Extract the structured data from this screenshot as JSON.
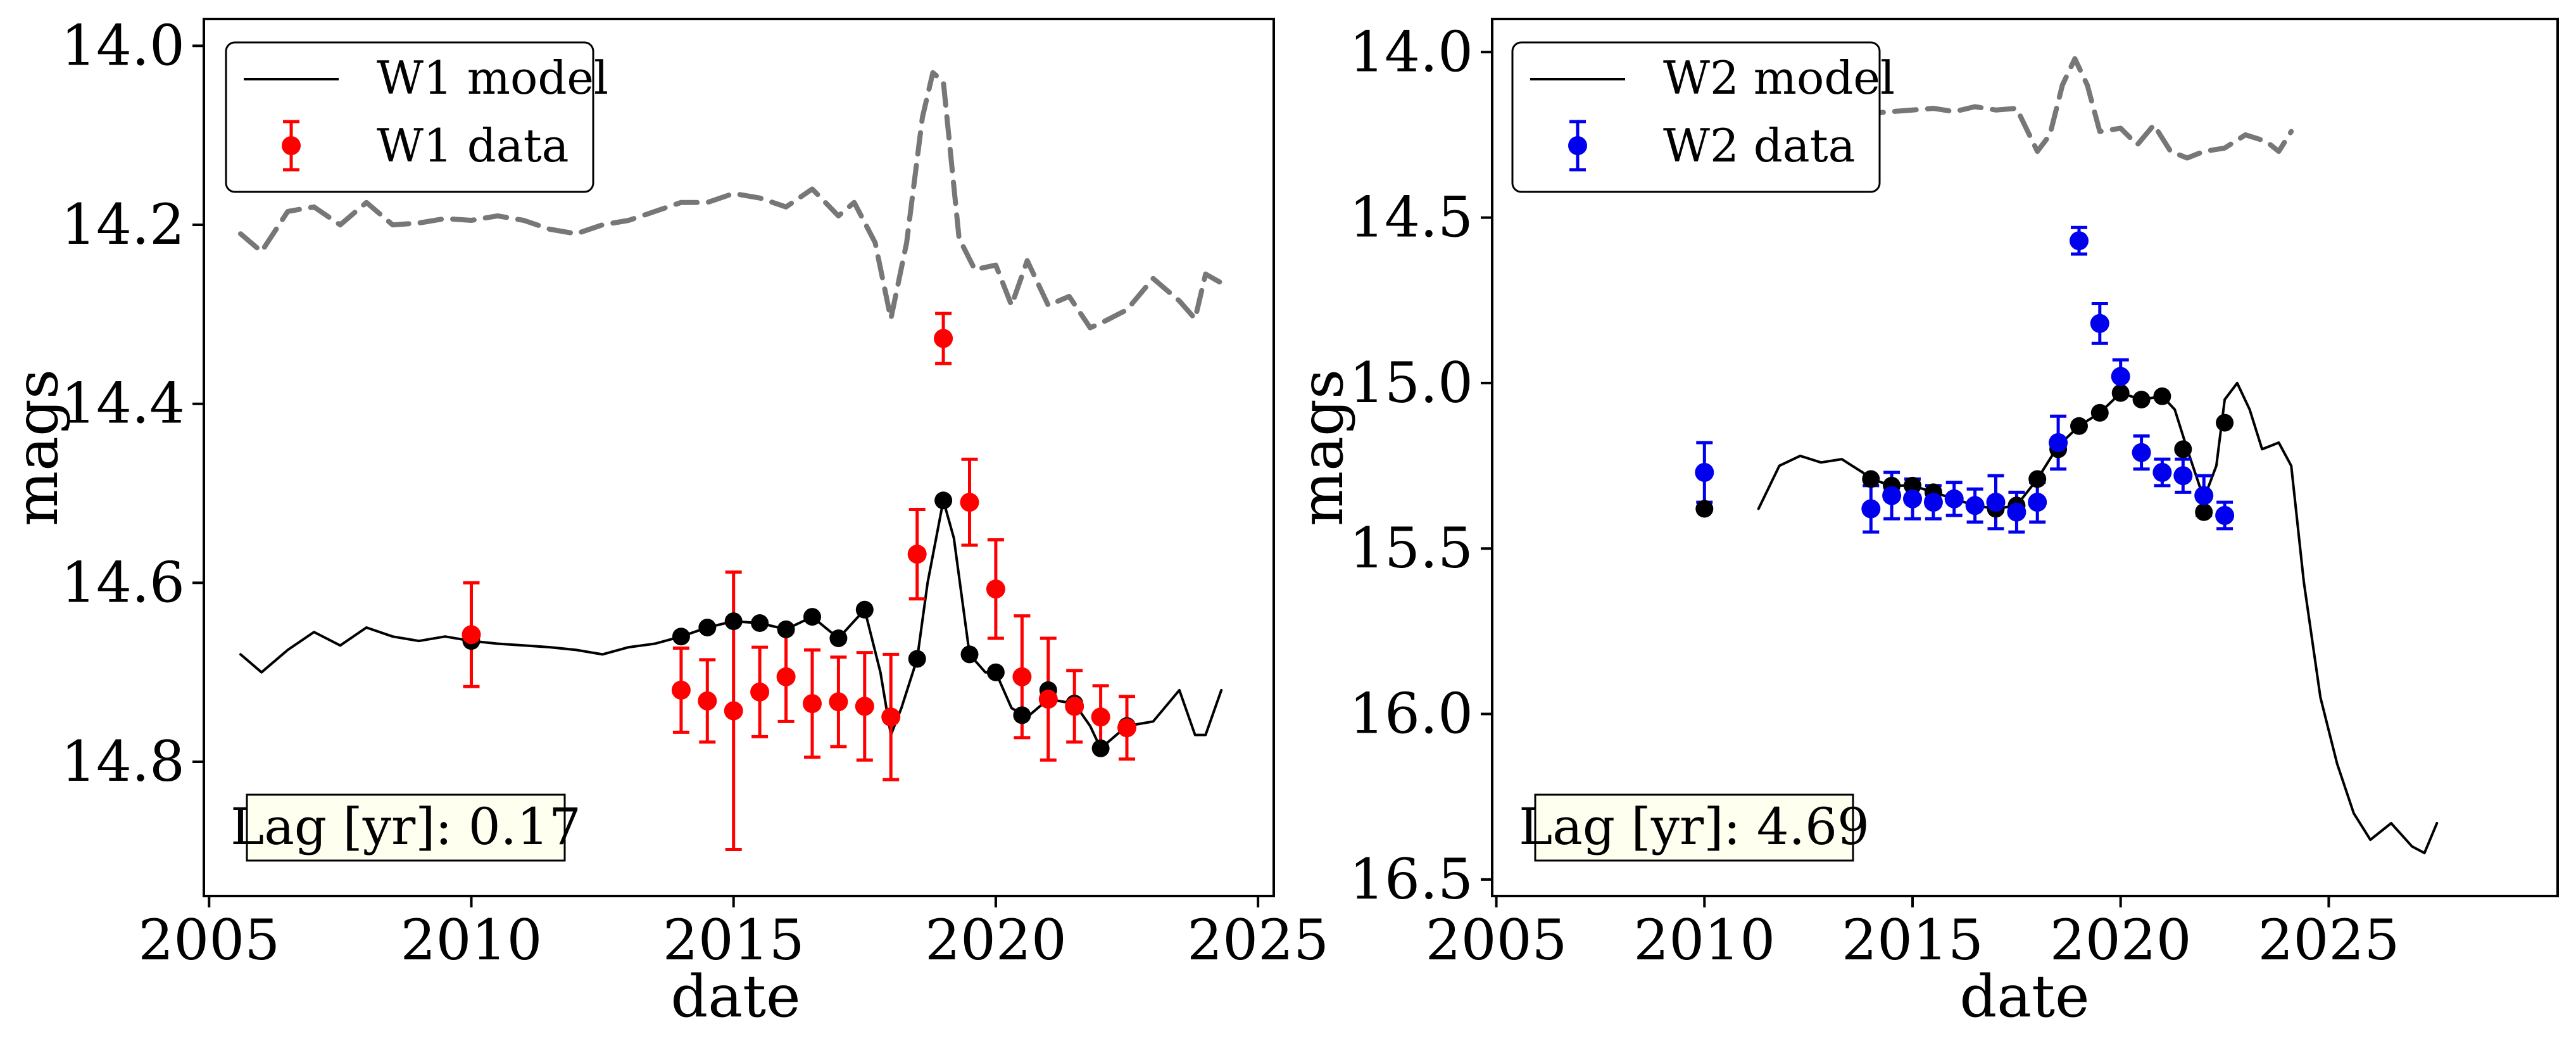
{
  "chart_data": [
    {
      "type": "line",
      "xlabel": "date",
      "ylabel": "mags",
      "xlim": [
        2004.9,
        2025.3
      ],
      "ylim": [
        14.95,
        13.97
      ],
      "y_inverted": true,
      "xticks": [
        2005,
        2010,
        2015,
        2020,
        2025
      ],
      "yticks": [
        14.0,
        14.2,
        14.4,
        14.6,
        14.8
      ],
      "xtick_labels": [
        "2005",
        "2010",
        "2015",
        "2020",
        "2025"
      ],
      "ytick_labels": [
        "14.0",
        "14.2",
        "14.4",
        "14.6",
        "14.8"
      ],
      "legend_position": "top-left",
      "legend": {
        "model_label": "W1 model",
        "data_label": "W1 data"
      },
      "lag_text": "Lag [yr]: 0.17",
      "colors": {
        "model": "#000000",
        "data": "#ff0000",
        "dashed": "#777777",
        "black_points": "#000000"
      },
      "model_curve": {
        "x": [
          2005.6,
          2006.0,
          2006.5,
          2007.0,
          2007.5,
          2008.0,
          2008.5,
          2009.0,
          2009.5,
          2010.0,
          2010.5,
          2011.0,
          2011.5,
          2012.0,
          2012.5,
          2013.0,
          2013.5,
          2014.0,
          2014.5,
          2015.0,
          2015.5,
          2016.0,
          2016.5,
          2017.0,
          2017.5,
          2017.8,
          2018.0,
          2018.2,
          2018.5,
          2018.7,
          2019.0,
          2019.2,
          2019.5,
          2019.8,
          2020.0,
          2020.3,
          2020.6,
          2021.0,
          2021.5,
          2021.8,
          2022.0,
          2022.5,
          2023.0,
          2023.5,
          2023.8,
          2024.0,
          2024.3
        ],
        "y": [
          14.68,
          14.7,
          14.675,
          14.655,
          14.67,
          14.65,
          14.66,
          14.665,
          14.66,
          14.665,
          14.668,
          14.67,
          14.672,
          14.675,
          14.68,
          14.672,
          14.668,
          14.66,
          14.65,
          14.643,
          14.645,
          14.652,
          14.638,
          14.662,
          14.63,
          14.7,
          14.77,
          14.74,
          14.685,
          14.6,
          14.508,
          14.55,
          14.68,
          14.7,
          14.7,
          14.74,
          14.75,
          14.73,
          14.735,
          14.76,
          14.785,
          14.76,
          14.755,
          14.72,
          14.77,
          14.77,
          14.72
        ]
      },
      "dashed_curve": {
        "x": [
          2005.6,
          2006.0,
          2006.5,
          2007.0,
          2007.5,
          2008.0,
          2008.5,
          2009.0,
          2009.5,
          2010.0,
          2010.5,
          2011.0,
          2011.5,
          2012.0,
          2012.5,
          2013.0,
          2013.5,
          2014.0,
          2014.5,
          2015.0,
          2015.5,
          2016.0,
          2016.5,
          2017.0,
          2017.3,
          2017.7,
          2018.0,
          2018.3,
          2018.6,
          2018.8,
          2019.0,
          2019.3,
          2019.6,
          2020.0,
          2020.3,
          2020.6,
          2021.0,
          2021.4,
          2021.8,
          2022.0,
          2022.5,
          2023.0,
          2023.5,
          2023.8,
          2024.0,
          2024.3
        ],
        "y": [
          14.21,
          14.23,
          14.185,
          14.18,
          14.2,
          14.175,
          14.2,
          14.198,
          14.193,
          14.195,
          14.19,
          14.195,
          14.205,
          14.21,
          14.2,
          14.195,
          14.185,
          14.175,
          14.175,
          14.165,
          14.17,
          14.18,
          14.16,
          14.19,
          14.175,
          14.22,
          14.305,
          14.22,
          14.08,
          14.03,
          14.04,
          14.215,
          14.25,
          14.245,
          14.29,
          14.24,
          14.29,
          14.28,
          14.315,
          14.31,
          14.295,
          14.26,
          14.285,
          14.305,
          14.255,
          14.265
        ]
      },
      "black_points": {
        "x": [
          2010.0,
          2014.0,
          2014.5,
          2015.0,
          2015.5,
          2016.0,
          2016.5,
          2017.0,
          2017.5,
          2018.5,
          2019.0,
          2019.5,
          2020.0,
          2020.5,
          2021.0,
          2021.5,
          2022.0,
          2022.5
        ],
        "y": [
          14.665,
          14.66,
          14.65,
          14.643,
          14.645,
          14.652,
          14.638,
          14.662,
          14.63,
          14.685,
          14.508,
          14.68,
          14.7,
          14.748,
          14.72,
          14.735,
          14.785,
          14.76
        ]
      },
      "data_points": {
        "x": [
          2010.0,
          2014.0,
          2014.5,
          2015.0,
          2015.5,
          2016.0,
          2016.5,
          2017.0,
          2017.5,
          2018.0,
          2018.5,
          2019.0,
          2019.5,
          2020.0,
          2020.5,
          2021.0,
          2021.5,
          2022.0,
          2022.5
        ],
        "y": [
          14.658,
          14.72,
          14.732,
          14.743,
          14.722,
          14.705,
          14.735,
          14.733,
          14.738,
          14.75,
          14.568,
          14.327,
          14.51,
          14.607,
          14.705,
          14.73,
          14.738,
          14.75,
          14.762
        ],
        "err": [
          0.058,
          0.047,
          0.046,
          0.155,
          0.05,
          0.05,
          0.06,
          0.05,
          0.06,
          0.07,
          0.05,
          0.028,
          0.048,
          0.055,
          0.068,
          0.068,
          0.04,
          0.035,
          0.035
        ]
      }
    },
    {
      "type": "line",
      "xlabel": "date",
      "ylabel": "mags",
      "xlim": [
        2004.9,
        2030.5
      ],
      "ylim": [
        16.55,
        13.9
      ],
      "y_inverted": true,
      "xticks": [
        2005,
        2010,
        2015,
        2020,
        2025
      ],
      "yticks": [
        14.0,
        14.5,
        15.0,
        15.5,
        16.0,
        16.5
      ],
      "xtick_labels": [
        "2005",
        "2010",
        "2015",
        "2020",
        "2025"
      ],
      "ytick_labels": [
        "14.0",
        "14.5",
        "15.0",
        "15.5",
        "16.0",
        "16.5"
      ],
      "legend_position": "top-left",
      "legend": {
        "model_label": "W2 model",
        "data_label": "W2 data"
      },
      "lag_text": "Lag [yr]: 4.69",
      "colors": {
        "model": "#000000",
        "data": "#0000ee",
        "dashed_light": "#dddddd",
        "dashed": "#777777",
        "black_points": "#000000"
      },
      "model_curve": {
        "x": [
          2011.3,
          2011.8,
          2012.3,
          2012.8,
          2013.3,
          2013.8,
          2014.0,
          2014.5,
          2015.0,
          2015.5,
          2016.0,
          2016.5,
          2017.0,
          2017.5,
          2018.0,
          2018.5,
          2019.0,
          2019.5,
          2020.0,
          2020.5,
          2021.0,
          2021.3,
          2021.6,
          2022.0,
          2022.3,
          2022.5,
          2022.8,
          2023.1,
          2023.4,
          2023.8,
          2024.1,
          2024.4,
          2024.8,
          2025.2,
          2025.6,
          2026.0,
          2026.5,
          2027.0,
          2027.3,
          2027.6
        ],
        "y": [
          15.38,
          15.25,
          15.22,
          15.24,
          15.23,
          15.27,
          15.29,
          15.31,
          15.31,
          15.33,
          15.35,
          15.37,
          15.38,
          15.37,
          15.29,
          15.19,
          15.13,
          15.09,
          15.03,
          15.05,
          15.04,
          15.08,
          15.2,
          15.35,
          15.25,
          15.05,
          15.0,
          15.08,
          15.2,
          15.18,
          15.25,
          15.6,
          15.95,
          16.15,
          16.3,
          16.38,
          16.33,
          16.4,
          16.42,
          16.33
        ]
      },
      "dashed_curve_light": {
        "x": [
          2005.6,
          2006.0,
          2006.5,
          2007.0,
          2007.5,
          2008.0,
          2008.5,
          2009.0,
          2009.5,
          2010.0,
          2010.5,
          2011.0,
          2011.5,
          2012.0,
          2012.5,
          2013.0
        ],
        "y": [
          14.21,
          14.22,
          14.2,
          14.195,
          14.2,
          14.2,
          14.205,
          14.205,
          14.2,
          14.2,
          14.205,
          14.205,
          14.21,
          14.215,
          14.205,
          14.2
        ]
      },
      "dashed_curve": {
        "x": [
          2013.0,
          2013.5,
          2014.0,
          2014.5,
          2015.0,
          2015.5,
          2016.0,
          2016.5,
          2017.0,
          2017.5,
          2018.0,
          2018.3,
          2018.6,
          2018.9,
          2019.2,
          2019.5,
          2020.0,
          2020.4,
          2020.8,
          2021.2,
          2021.6,
          2022.0,
          2022.5,
          2023.0,
          2023.5,
          2023.8,
          2024.1
        ],
        "y": [
          14.2,
          14.195,
          14.185,
          14.18,
          14.175,
          14.17,
          14.18,
          14.165,
          14.175,
          14.17,
          14.3,
          14.25,
          14.1,
          14.02,
          14.1,
          14.24,
          14.23,
          14.28,
          14.22,
          14.3,
          14.32,
          14.3,
          14.29,
          14.25,
          14.27,
          14.3,
          14.24
        ]
      },
      "black_points": {
        "x": [
          2010.0,
          2014.0,
          2014.5,
          2015.0,
          2015.5,
          2016.0,
          2016.5,
          2017.0,
          2017.5,
          2018.0,
          2018.5,
          2019.0,
          2019.5,
          2020.0,
          2020.5,
          2021.0,
          2021.5,
          2022.0,
          2022.5
        ],
        "y": [
          15.38,
          15.29,
          15.31,
          15.31,
          15.33,
          15.35,
          15.37,
          15.38,
          15.37,
          15.29,
          15.2,
          15.13,
          15.09,
          15.03,
          15.05,
          15.04,
          15.2,
          15.39,
          15.12
        ]
      },
      "data_points": {
        "x": [
          2010.0,
          2014.0,
          2014.5,
          2015.0,
          2015.5,
          2016.0,
          2016.5,
          2017.0,
          2017.5,
          2018.0,
          2018.5,
          2019.0,
          2019.5,
          2020.0,
          2020.5,
          2021.0,
          2021.5,
          2022.0,
          2022.5
        ],
        "y": [
          15.27,
          15.38,
          15.34,
          15.35,
          15.36,
          15.35,
          15.37,
          15.36,
          15.39,
          15.36,
          15.18,
          14.57,
          14.82,
          14.98,
          15.21,
          15.27,
          15.28,
          15.34,
          15.4
        ],
        "err": [
          0.09,
          0.07,
          0.07,
          0.06,
          0.05,
          0.05,
          0.05,
          0.08,
          0.06,
          0.06,
          0.08,
          0.04,
          0.06,
          0.05,
          0.05,
          0.04,
          0.05,
          0.06,
          0.04
        ]
      }
    }
  ]
}
